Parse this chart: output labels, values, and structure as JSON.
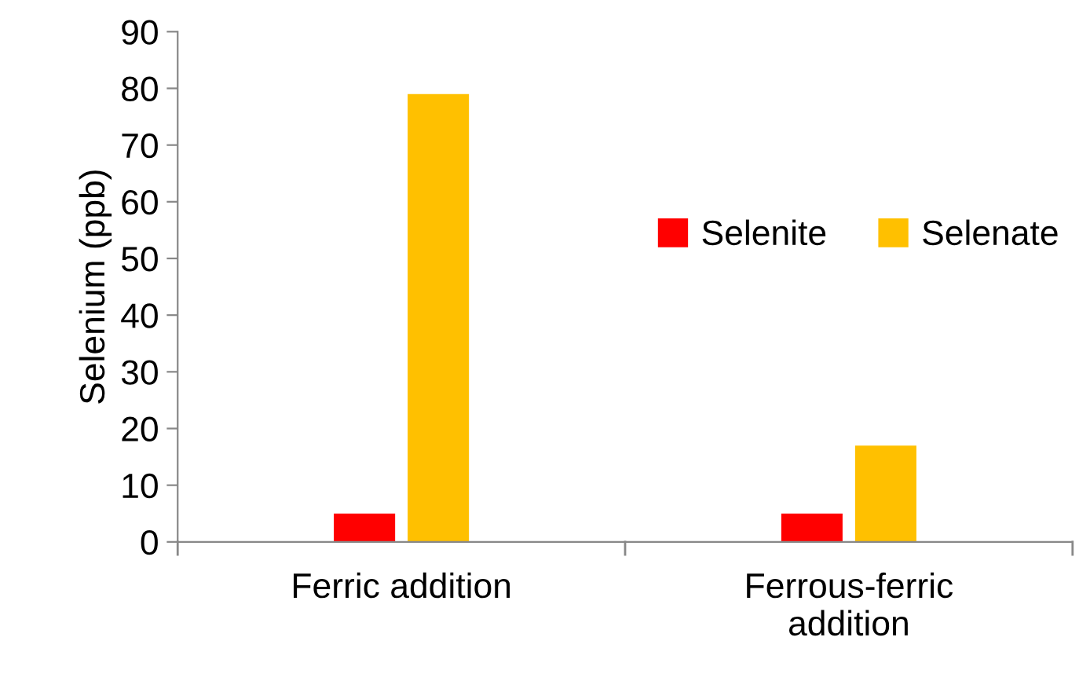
{
  "chart_data": {
    "type": "bar",
    "ylabel": "Selenium (ppb)",
    "categories": [
      "Ferric addition",
      "Ferrous-ferric addition"
    ],
    "series": [
      {
        "name": "Selenite",
        "color": "#ff0000",
        "values": [
          5,
          5
        ]
      },
      {
        "name": "Selenate",
        "color": "#ffc000",
        "values": [
          79,
          17
        ]
      }
    ],
    "ylim": [
      0,
      90
    ],
    "yticks": [
      0,
      10,
      20,
      30,
      40,
      50,
      60,
      70,
      80,
      90
    ],
    "grid": false,
    "legend": "right"
  }
}
